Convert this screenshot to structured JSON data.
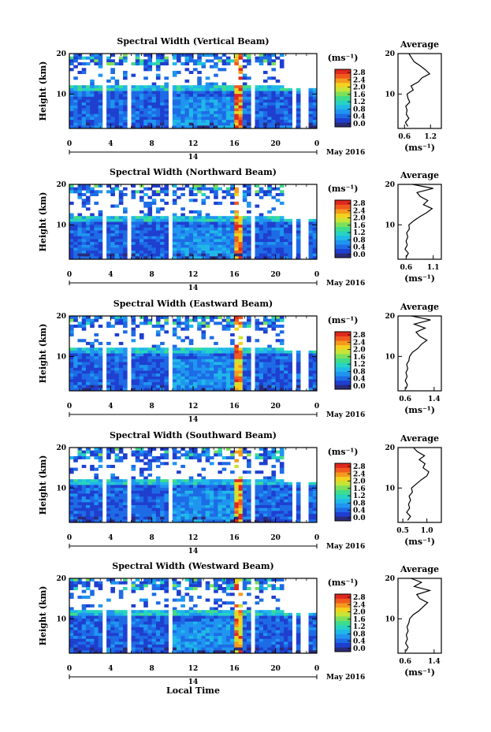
{
  "figure": {
    "xlabel": "Local Time",
    "date_label": "May 2016",
    "day_label": "14",
    "ylabel": "Height (km)",
    "cb_unit": "(ms⁻¹)",
    "avg_title": "Average",
    "avg_xlabel": "(ms⁻¹)",
    "colorscale": [
      "#2b2b7a",
      "#1f3fcf",
      "#1e6be6",
      "#1f95f0",
      "#20b8e8",
      "#27d3c2",
      "#3fdc8b",
      "#7de05a",
      "#c8e436",
      "#f2d21f",
      "#f59a1e",
      "#f05a1e",
      "#e0281e"
    ],
    "accent_colors": {
      "low": "#1f3fcf",
      "mid": "#27d3c2",
      "high": "#e0281e"
    }
  },
  "chart_data": [
    {
      "type": "heatmap",
      "title": "Spectral Width (Vertical Beam)",
      "xlabel": "Local Time",
      "ylabel": "Height (km)",
      "x_ticks": [
        "0",
        "4",
        "8",
        "12",
        "16",
        "20",
        "0"
      ],
      "xlim": [
        0,
        24
      ],
      "y_ticks": [
        "20",
        "10"
      ],
      "ylim": [
        1.5,
        20
      ],
      "colorbar": {
        "unit": "(ms⁻¹)",
        "ticks": [
          "2.8",
          "2.4",
          "2.0",
          "1.6",
          "1.2",
          "0.8",
          "0.4",
          "0.0"
        ],
        "range": [
          0,
          2.8
        ]
      },
      "data_gaps_hours": [
        [
          3.3,
          3.6
        ],
        [
          5.8,
          6.1
        ],
        [
          9.5,
          9.9
        ],
        [
          17.6,
          17.9
        ],
        [
          21.6,
          22.1
        ],
        [
          22.5,
          22.6
        ],
        [
          23.0,
          23.1
        ]
      ],
      "high_width_band_hours": [
        16.0,
        16.6
      ],
      "average_profile": {
        "title": "Average",
        "xlabel": "(ms⁻¹)",
        "x_ticks": [
          "0.6",
          "1.2"
        ],
        "xlim": [
          0.45,
          1.45
        ],
        "y_ticks": [
          "20",
          "10"
        ],
        "ylim": [
          1.5,
          20
        ],
        "heights": [
          2,
          3,
          4,
          5,
          6,
          7,
          8,
          9,
          10,
          11,
          12,
          13,
          14,
          15,
          16,
          17,
          18,
          19,
          20
        ],
        "values": [
          0.68,
          0.62,
          0.7,
          0.64,
          0.66,
          0.63,
          0.72,
          0.68,
          0.66,
          0.8,
          0.75,
          0.92,
          1.0,
          1.18,
          1.08,
          0.96,
          0.82,
          0.76,
          0.7
        ]
      }
    },
    {
      "type": "heatmap",
      "title": "Spectral Width (Northward Beam)",
      "xlabel": "Local Time",
      "ylabel": "Height (km)",
      "x_ticks": [
        "0",
        "4",
        "8",
        "12",
        "16",
        "20",
        "0"
      ],
      "xlim": [
        0,
        24
      ],
      "y_ticks": [
        "20",
        "10"
      ],
      "ylim": [
        1.5,
        20
      ],
      "colorbar": {
        "unit": "(ms⁻¹)",
        "ticks": [
          "2.8",
          "2.4",
          "2.0",
          "1.6",
          "1.2",
          "0.8",
          "0.4",
          "0.0"
        ],
        "range": [
          0,
          2.8
        ]
      },
      "data_gaps_hours": [
        [
          3.3,
          3.6
        ],
        [
          5.8,
          6.1
        ],
        [
          9.5,
          9.9
        ],
        [
          17.6,
          17.9
        ],
        [
          21.6,
          22.1
        ],
        [
          22.5,
          22.6
        ],
        [
          23.0,
          23.1
        ]
      ],
      "high_width_band_hours": [
        16.0,
        16.6
      ],
      "average_profile": {
        "title": "Average",
        "xlabel": "(ms⁻¹)",
        "x_ticks": [
          "0.6",
          "1.1"
        ],
        "xlim": [
          0.45,
          1.25
        ],
        "y_ticks": [
          "20",
          "10"
        ],
        "ylim": [
          1.5,
          20
        ],
        "heights": [
          2,
          3,
          4,
          5,
          6,
          7,
          8,
          9,
          10,
          11,
          12,
          13,
          14,
          15,
          16,
          17,
          18,
          19,
          20
        ],
        "values": [
          0.6,
          0.64,
          0.58,
          0.62,
          0.6,
          0.63,
          0.61,
          0.66,
          0.65,
          0.74,
          0.85,
          0.98,
          1.08,
          0.92,
          1.0,
          0.86,
          0.8,
          1.1,
          0.72
        ]
      }
    },
    {
      "type": "heatmap",
      "title": "Spectral Width (Eastward Beam)",
      "xlabel": "Local Time",
      "ylabel": "Height (km)",
      "x_ticks": [
        "0",
        "4",
        "8",
        "12",
        "16",
        "20",
        "0"
      ],
      "xlim": [
        0,
        24
      ],
      "y_ticks": [
        "20",
        "10"
      ],
      "ylim": [
        1.5,
        20
      ],
      "colorbar": {
        "unit": "(ms⁻¹)",
        "ticks": [
          "2.8",
          "2.4",
          "2.0",
          "1.6",
          "1.2",
          "0.8",
          "0.4",
          "0.0"
        ],
        "range": [
          0,
          2.8
        ]
      },
      "data_gaps_hours": [
        [
          3.3,
          3.6
        ],
        [
          5.8,
          6.1
        ],
        [
          9.5,
          9.9
        ],
        [
          17.6,
          17.9
        ],
        [
          21.6,
          22.1
        ],
        [
          22.5,
          22.6
        ],
        [
          23.0,
          23.1
        ]
      ],
      "high_width_band_hours": [
        16.0,
        16.6
      ],
      "average_profile": {
        "title": "Average",
        "xlabel": "(ms⁻¹)",
        "x_ticks": [
          "0.6",
          "1.4"
        ],
        "xlim": [
          0.4,
          1.6
        ],
        "y_ticks": [
          "20",
          "10"
        ],
        "ylim": [
          1.5,
          20
        ],
        "heights": [
          2,
          3,
          4,
          5,
          6,
          7,
          8,
          9,
          10,
          11,
          12,
          13,
          14,
          15,
          16,
          17,
          18,
          19,
          20
        ],
        "values": [
          0.62,
          0.66,
          0.6,
          0.65,
          0.62,
          0.67,
          0.64,
          0.7,
          0.72,
          0.8,
          0.95,
          1.05,
          1.2,
          1.0,
          0.9,
          1.15,
          0.85,
          1.3,
          0.78
        ]
      }
    },
    {
      "type": "heatmap",
      "title": "Spectral Width (Southward Beam)",
      "xlabel": "Local Time",
      "ylabel": "Height (km)",
      "x_ticks": [
        "0",
        "4",
        "8",
        "12",
        "16",
        "20",
        "0"
      ],
      "xlim": [
        0,
        24
      ],
      "y_ticks": [
        "20",
        "10"
      ],
      "ylim": [
        1.5,
        20
      ],
      "colorbar": {
        "unit": "(ms⁻¹)",
        "ticks": [
          "2.8",
          "2.4",
          "2.0",
          "1.6",
          "1.2",
          "0.8",
          "0.4",
          "0.0"
        ],
        "range": [
          0,
          2.8
        ]
      },
      "data_gaps_hours": [
        [
          3.3,
          3.6
        ],
        [
          5.8,
          6.1
        ],
        [
          9.5,
          9.9
        ],
        [
          17.6,
          17.9
        ],
        [
          21.6,
          22.1
        ],
        [
          22.5,
          22.6
        ],
        [
          23.0,
          23.1
        ]
      ],
      "high_width_band_hours": [
        16.0,
        16.6
      ],
      "average_profile": {
        "title": "Average",
        "xlabel": "(ms⁻¹)",
        "x_ticks": [
          "0.5",
          "1.0"
        ],
        "xlim": [
          0.4,
          1.3
        ],
        "y_ticks": [
          "20",
          "10"
        ],
        "ylim": [
          1.5,
          20
        ],
        "heights": [
          2,
          3,
          4,
          5,
          6,
          7,
          8,
          9,
          10,
          11,
          12,
          13,
          14,
          15,
          16,
          17,
          18,
          19,
          20
        ],
        "values": [
          0.6,
          0.66,
          0.58,
          0.64,
          0.62,
          0.66,
          0.63,
          0.7,
          0.68,
          0.78,
          0.88,
          1.0,
          1.04,
          0.92,
          0.96,
          0.84,
          0.95,
          0.8,
          0.72
        ]
      }
    },
    {
      "type": "heatmap",
      "title": "Spectral Width (Westward Beam)",
      "xlabel": "Local Time",
      "ylabel": "Height (km)",
      "x_ticks": [
        "0",
        "4",
        "8",
        "12",
        "16",
        "20",
        "0"
      ],
      "xlim": [
        0,
        24
      ],
      "y_ticks": [
        "20",
        "10"
      ],
      "ylim": [
        1.5,
        20
      ],
      "colorbar": {
        "unit": "(ms⁻¹)",
        "ticks": [
          "2.8",
          "2.4",
          "2.0",
          "1.6",
          "1.2",
          "0.8",
          "0.4",
          "0.0"
        ],
        "range": [
          0,
          2.8
        ]
      },
      "data_gaps_hours": [
        [
          3.3,
          3.6
        ],
        [
          5.8,
          6.1
        ],
        [
          9.5,
          9.9
        ],
        [
          17.6,
          17.9
        ],
        [
          21.6,
          22.1
        ],
        [
          22.5,
          22.6
        ],
        [
          23.0,
          23.1
        ]
      ],
      "high_width_band_hours": [
        16.0,
        16.6
      ],
      "average_profile": {
        "title": "Average",
        "xlabel": "(ms⁻¹)",
        "x_ticks": [
          "0.6",
          "1.4"
        ],
        "xlim": [
          0.4,
          1.6
        ],
        "y_ticks": [
          "20",
          "10"
        ],
        "ylim": [
          1.5,
          20
        ],
        "heights": [
          2,
          3,
          4,
          5,
          6,
          7,
          8,
          9,
          10,
          11,
          12,
          13,
          14,
          15,
          16,
          17,
          18,
          19,
          20
        ],
        "values": [
          0.62,
          0.68,
          0.61,
          0.66,
          0.63,
          0.68,
          0.65,
          0.7,
          0.72,
          0.82,
          0.98,
          1.1,
          1.22,
          1.0,
          0.92,
          1.28,
          0.85,
          1.05,
          0.76
        ]
      }
    }
  ]
}
